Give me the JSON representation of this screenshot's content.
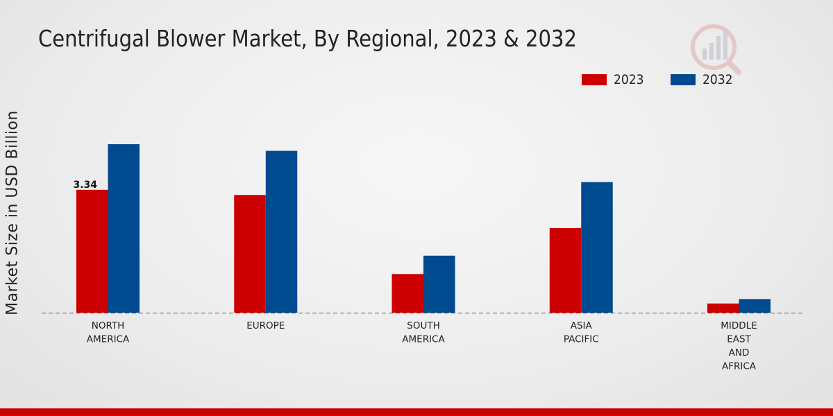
{
  "chart_data": {
    "type": "bar",
    "title": "Centrifugal Blower Market, By Regional, 2023 & 2032",
    "xlabel": "",
    "ylabel": "Market Size in USD Billion",
    "categories": [
      [
        "NORTH",
        "AMERICA"
      ],
      [
        "EUROPE"
      ],
      [
        "SOUTH",
        "AMERICA"
      ],
      [
        "ASIA",
        "PACIFIC"
      ],
      [
        "MIDDLE",
        "EAST",
        "AND",
        "AFRICA"
      ]
    ],
    "series": [
      {
        "name": "2023",
        "color": "#cc0000",
        "values": [
          3.34,
          3.2,
          1.05,
          2.3,
          0.25
        ]
      },
      {
        "name": "2032",
        "color": "#004a8f",
        "values": [
          4.58,
          4.4,
          1.55,
          3.55,
          0.37
        ]
      }
    ],
    "data_labels": [
      {
        "series": 0,
        "index": 0,
        "text": "3.34"
      }
    ],
    "ylim": [
      0,
      8.5
    ],
    "grid": false,
    "legend_position": "top-right"
  }
}
